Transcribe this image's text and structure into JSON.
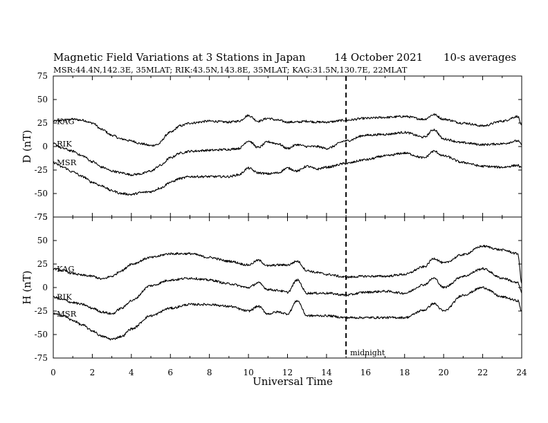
{
  "chart_data": {
    "type": "line",
    "title": "Magnetic Field Variations at 3 Stations in Japan",
    "date": "14 October 2021",
    "averaging": "10-s averages",
    "stations_line": "MSR:44.4N,142.3E, 35MLAT;  RIK:43.5N,143.8E, 35MLAT;  KAG:31.5N,130.7E, 22MLAT",
    "xlabel": "Universal Time",
    "xlim": [
      0,
      24
    ],
    "xticks": [
      "0",
      "2",
      "4",
      "6",
      "8",
      "10",
      "12",
      "14",
      "16",
      "18",
      "20",
      "22",
      "24"
    ],
    "annotation": {
      "x": 15,
      "text": "midnight"
    },
    "panels": [
      {
        "ylabel": "D (nT)",
        "ylim": [
          -75,
          75
        ],
        "yticks": [
          "75",
          "50",
          "25",
          "0",
          "-25",
          "-50",
          "-75"
        ],
        "series": [
          {
            "name": "KAG",
            "x": [
              0,
              0.5,
              1,
              1.5,
              2,
              2.5,
              3,
              3.5,
              4,
              4.5,
              5,
              5.3,
              6,
              6.5,
              7,
              8,
              9,
              9.5,
              10,
              10.5,
              11,
              11.5,
              12,
              12.5,
              13,
              13.5,
              14,
              15,
              16,
              17,
              18,
              19,
              19.5,
              20,
              21,
              22,
              23,
              23.8,
              24
            ],
            "y": [
              27,
              28,
              29,
              28,
              25,
              18,
              12,
              8,
              6,
              3,
              1,
              2,
              15,
              22,
              25,
              27,
              26,
              27,
              33,
              27,
              30,
              28,
              26,
              26,
              27,
              26,
              26,
              28,
              30,
              31,
              32,
              29,
              34,
              29,
              25,
              22,
              27,
              32,
              22
            ]
          },
          {
            "name": "RIK",
            "x": [
              0,
              0.5,
              1,
              1.5,
              2,
              2.5,
              3,
              3.5,
              4,
              4.5,
              5,
              5.5,
              6,
              6.5,
              7,
              8,
              9,
              9.5,
              10,
              10.5,
              11,
              11.5,
              12,
              12.5,
              13,
              13.5,
              14,
              15,
              16,
              17,
              18,
              19,
              19.5,
              20,
              21,
              22,
              23,
              23.8,
              24
            ],
            "y": [
              3,
              -2,
              -5,
              -10,
              -16,
              -22,
              -26,
              -28,
              -30,
              -29,
              -26,
              -20,
              -12,
              -7,
              -5,
              -4,
              -3,
              -2,
              6,
              -1,
              5,
              3,
              -2,
              2,
              0,
              0,
              -2,
              6,
              12,
              13,
              15,
              10,
              18,
              8,
              4,
              2,
              3,
              6,
              2
            ]
          },
          {
            "name": "MSR",
            "x": [
              0,
              0.5,
              1,
              1.5,
              2,
              2.5,
              3,
              3.5,
              4,
              4.5,
              5,
              5.5,
              6,
              6.5,
              7,
              8,
              9,
              9.5,
              10,
              10.5,
              11,
              11.5,
              12,
              12.5,
              13,
              13.5,
              14,
              15,
              16,
              17,
              18,
              19,
              19.5,
              20,
              21,
              22,
              23,
              23.8,
              24
            ],
            "y": [
              -17,
              -22,
              -27,
              -32,
              -38,
              -42,
              -47,
              -50,
              -51,
              -49,
              -48,
              -44,
              -38,
              -34,
              -32,
              -32,
              -32,
              -30,
              -23,
              -28,
              -29,
              -28,
              -23,
              -26,
              -21,
              -24,
              -22,
              -18,
              -14,
              -10,
              -7,
              -12,
              -5,
              -10,
              -17,
              -21,
              -22,
              -20,
              -23
            ]
          }
        ]
      },
      {
        "ylabel": "H (nT)",
        "ylim": [
          -75,
          75
        ],
        "yticks": [
          "75",
          "50",
          "25",
          "0",
          "-25",
          "-50",
          "-75"
        ],
        "series": [
          {
            "name": "KAG",
            "x": [
              0,
              0.5,
              1,
              1.5,
              2,
              2.5,
              3,
              3.5,
              4,
              5,
              6,
              7,
              8,
              9,
              10,
              10.5,
              11,
              11.5,
              12,
              12.5,
              13,
              13.5,
              14,
              15,
              16,
              17,
              18,
              19,
              19.5,
              20,
              21,
              22,
              23,
              23.8,
              24
            ],
            "y": [
              20,
              18,
              15,
              13,
              12,
              9,
              12,
              18,
              25,
              32,
              36,
              36,
              32,
              28,
              24,
              29,
              23,
              24,
              24,
              28,
              18,
              16,
              14,
              11,
              12,
              12,
              14,
              22,
              31,
              26,
              35,
              44,
              40,
              36,
              5
            ]
          },
          {
            "name": "RIK",
            "x": [
              0,
              0.5,
              1,
              1.5,
              2,
              2.5,
              3,
              3.5,
              4,
              5,
              6,
              7,
              8,
              9,
              10,
              10.5,
              11,
              11.5,
              12,
              12.5,
              13,
              13.5,
              14,
              15,
              16,
              17,
              18,
              19,
              19.5,
              20,
              21,
              22,
              23,
              23.8,
              24
            ],
            "y": [
              -10,
              -13,
              -16,
              -18,
              -22,
              -26,
              -28,
              -22,
              -14,
              2,
              8,
              10,
              8,
              4,
              0,
              5,
              -2,
              -3,
              -5,
              8,
              -6,
              -6,
              -6,
              -8,
              -5,
              -4,
              -6,
              3,
              10,
              0,
              12,
              20,
              10,
              5,
              -5
            ]
          },
          {
            "name": "MSR",
            "x": [
              0,
              0.5,
              1,
              1.5,
              2,
              2.5,
              3,
              3.5,
              4,
              5,
              6,
              7,
              8,
              9,
              10,
              10.5,
              11,
              11.5,
              12,
              12.5,
              13,
              13.5,
              14,
              15,
              16,
              17,
              18,
              19,
              19.5,
              20,
              21,
              22,
              23,
              23.8,
              24
            ],
            "y": [
              -28,
              -30,
              -35,
              -40,
              -46,
              -52,
              -55,
              -52,
              -44,
              -30,
              -22,
              -18,
              -18,
              -20,
              -25,
              -20,
              -28,
              -26,
              -28,
              -14,
              -30,
              -30,
              -30,
              -32,
              -32,
              -32,
              -32,
              -24,
              -17,
              -25,
              -8,
              0,
              -10,
              -14,
              -25
            ]
          }
        ]
      }
    ]
  }
}
